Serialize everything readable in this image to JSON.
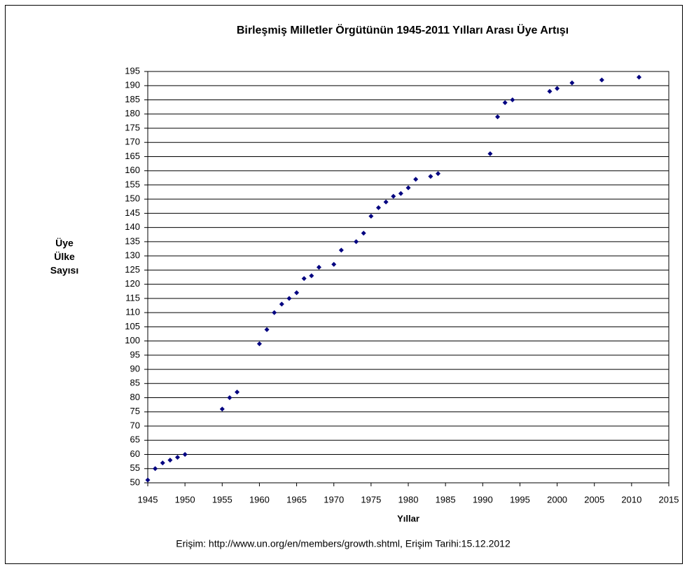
{
  "chart_data": {
    "type": "scatter",
    "title": "Birleşmiş Milletler Örgütünün 1945-2011 Yılları Arası Üye Artışı",
    "x_label": "Yıllar",
    "y_label": [
      "Üye",
      "Ülke",
      "Sayısı"
    ],
    "source": "Erişim: http://www.un.org/en/members/growth.shtml, Erişim Tarihi:15.12.2012",
    "color": "#000080",
    "grid": true,
    "x": [
      1945,
      1946,
      1947,
      1948,
      1949,
      1950,
      1955,
      1956,
      1957,
      1960,
      1961,
      1962,
      1963,
      1964,
      1965,
      1966,
      1967,
      1968,
      1970,
      1971,
      1973,
      1974,
      1975,
      1976,
      1977,
      1978,
      1979,
      1980,
      1981,
      1983,
      1984,
      1991,
      1992,
      1993,
      1994,
      1999,
      2000,
      2002,
      2006,
      2011
    ],
    "values": [
      51,
      55,
      57,
      58,
      59,
      60,
      76,
      80,
      82,
      99,
      104,
      110,
      113,
      115,
      117,
      122,
      123,
      126,
      127,
      132,
      135,
      138,
      144,
      147,
      149,
      151,
      152,
      154,
      157,
      158,
      159,
      166,
      179,
      184,
      185,
      188,
      189,
      191,
      192,
      193
    ],
    "xlim": [
      1945,
      2015
    ],
    "xticks": [
      1945,
      1950,
      1955,
      1960,
      1965,
      1970,
      1975,
      1980,
      1985,
      1990,
      1995,
      2000,
      2005,
      2010,
      2015
    ],
    "ylim": [
      50,
      195
    ],
    "yticks": [
      50,
      55,
      60,
      65,
      70,
      75,
      80,
      85,
      90,
      95,
      100,
      105,
      110,
      115,
      120,
      125,
      130,
      135,
      140,
      145,
      150,
      155,
      160,
      165,
      170,
      175,
      180,
      185,
      190,
      195
    ]
  }
}
